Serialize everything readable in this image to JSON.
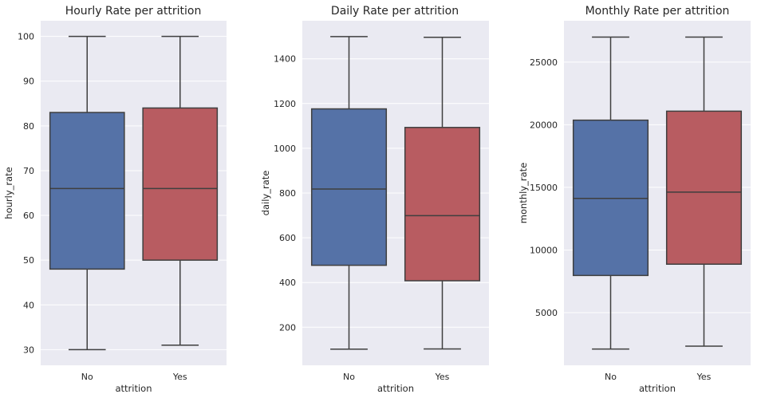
{
  "colors": {
    "no": "#5572a7",
    "yes": "#b85c61",
    "line": "#3f3f3f",
    "background": "#eaeaf2"
  },
  "chart_data": [
    {
      "type": "box",
      "title": "Hourly Rate per attrition",
      "xlabel": "attrition",
      "ylabel": "hourly_rate",
      "categories": [
        "No",
        "Yes"
      ],
      "ylim": [
        26.5,
        103.5
      ],
      "yticks": [
        30,
        40,
        50,
        60,
        70,
        80,
        90,
        100
      ],
      "grid": true,
      "boxes": [
        {
          "category": "No",
          "min": 30,
          "q1": 48,
          "median": 66,
          "q3": 83,
          "max": 100
        },
        {
          "category": "Yes",
          "min": 31,
          "q1": 50,
          "median": 66,
          "q3": 84,
          "max": 100
        }
      ]
    },
    {
      "type": "box",
      "title": "Daily Rate per attrition",
      "xlabel": "attrition",
      "ylabel": "daily_rate",
      "categories": [
        "No",
        "Yes"
      ],
      "ylim": [
        30,
        1570
      ],
      "yticks": [
        200,
        400,
        600,
        800,
        1000,
        1200,
        1400
      ],
      "grid": true,
      "boxes": [
        {
          "category": "No",
          "min": 102,
          "q1": 477,
          "median": 818,
          "q3": 1176,
          "max": 1499
        },
        {
          "category": "Yes",
          "min": 103,
          "q1": 408,
          "median": 699,
          "q3": 1093,
          "max": 1496
        }
      ]
    },
    {
      "type": "box",
      "title": "Monthly Rate per attrition",
      "xlabel": "attrition",
      "ylabel": "monthly_rate",
      "categories": [
        "No",
        "Yes"
      ],
      "ylim": [
        800,
        28300
      ],
      "yticks": [
        5000,
        10000,
        15000,
        20000,
        25000
      ],
      "grid": true,
      "boxes": [
        {
          "category": "No",
          "min": 2094,
          "q1": 7970,
          "median": 14120,
          "q3": 20365,
          "max": 26999
        },
        {
          "category": "Yes",
          "min": 2326,
          "q1": 8870,
          "median": 14618,
          "q3": 21082,
          "max": 26999
        }
      ]
    }
  ]
}
